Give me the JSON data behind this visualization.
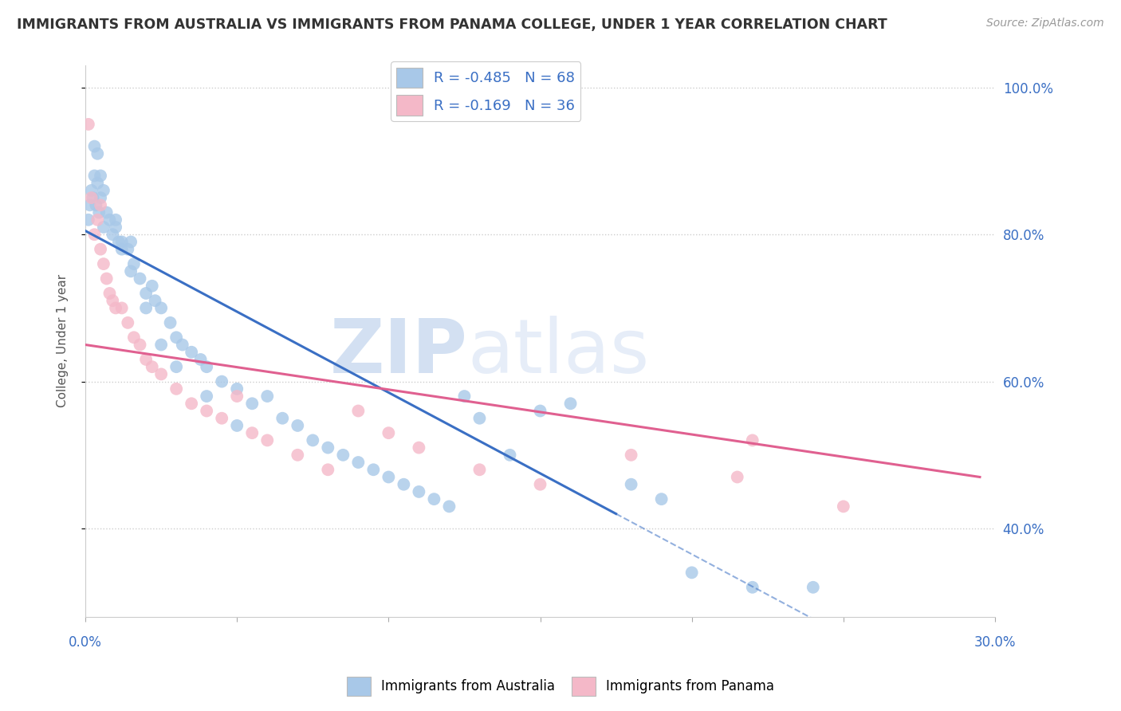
{
  "title": "IMMIGRANTS FROM AUSTRALIA VS IMMIGRANTS FROM PANAMA COLLEGE, UNDER 1 YEAR CORRELATION CHART",
  "source": "Source: ZipAtlas.com",
  "legend_label1": "Immigrants from Australia",
  "legend_label2": "Immigrants from Panama",
  "R1": "-0.485",
  "N1": "68",
  "R2": "-0.169",
  "N2": "36",
  "color_australia": "#a8c8e8",
  "color_panama": "#f4b8c8",
  "line_color_australia": "#3a6fc4",
  "line_color_panama": "#e06090",
  "background_color": "#ffffff",
  "grid_color": "#c8c8c8",
  "aus_line_x0": 0.0,
  "aus_line_y0": 80.5,
  "aus_line_x1": 17.5,
  "aus_line_y1": 42.0,
  "pan_line_x0": 0.0,
  "pan_line_y0": 65.0,
  "pan_line_x1": 29.5,
  "pan_line_y1": 47.0,
  "australia_x": [
    0.1,
    0.15,
    0.2,
    0.25,
    0.3,
    0.35,
    0.4,
    0.45,
    0.5,
    0.6,
    0.7,
    0.8,
    0.9,
    1.0,
    1.1,
    1.2,
    1.4,
    1.5,
    1.6,
    1.8,
    2.0,
    2.2,
    2.3,
    2.5,
    2.8,
    3.0,
    3.2,
    3.5,
    3.8,
    4.0,
    4.5,
    5.0,
    5.5,
    6.0,
    6.5,
    7.0,
    7.5,
    8.0,
    8.5,
    9.0,
    9.5,
    10.0,
    10.5,
    11.0,
    11.5,
    12.0,
    12.5,
    13.0,
    14.0,
    15.0,
    16.0,
    18.0,
    19.0,
    20.0,
    22.0,
    24.0,
    0.3,
    0.4,
    0.5,
    0.6,
    1.0,
    1.2,
    1.5,
    2.0,
    2.5,
    3.0,
    4.0,
    5.0
  ],
  "australia_y": [
    82,
    84,
    86,
    85,
    88,
    84,
    87,
    83,
    85,
    81,
    83,
    82,
    80,
    81,
    79,
    78,
    78,
    79,
    76,
    74,
    72,
    73,
    71,
    70,
    68,
    66,
    65,
    64,
    63,
    62,
    60,
    59,
    57,
    58,
    55,
    54,
    52,
    51,
    50,
    49,
    48,
    47,
    46,
    45,
    44,
    43,
    58,
    55,
    50,
    56,
    57,
    46,
    44,
    34,
    32,
    32,
    92,
    91,
    88,
    86,
    82,
    79,
    75,
    70,
    65,
    62,
    58,
    54
  ],
  "panama_x": [
    0.1,
    0.2,
    0.3,
    0.4,
    0.5,
    0.6,
    0.7,
    0.8,
    0.9,
    1.0,
    1.2,
    1.4,
    1.6,
    1.8,
    2.0,
    2.2,
    2.5,
    3.0,
    3.5,
    4.0,
    4.5,
    5.0,
    5.5,
    6.0,
    7.0,
    8.0,
    9.0,
    10.0,
    11.0,
    13.0,
    15.0,
    18.0,
    21.5,
    22.0,
    25.0,
    0.5
  ],
  "panama_y": [
    95,
    85,
    80,
    82,
    78,
    76,
    74,
    72,
    71,
    70,
    70,
    68,
    66,
    65,
    63,
    62,
    61,
    59,
    57,
    56,
    55,
    58,
    53,
    52,
    50,
    48,
    56,
    53,
    51,
    48,
    46,
    50,
    47,
    52,
    43,
    84
  ],
  "xlim_min": 0,
  "xlim_max": 30,
  "ylim_min": 28,
  "ylim_max": 103,
  "yticks": [
    40,
    60,
    80,
    100
  ],
  "ytick_labels": [
    "40.0%",
    "60.0%",
    "80.0%",
    "100.0%"
  ],
  "xtick_positions": [
    0,
    5,
    10,
    15,
    20,
    25,
    30
  ],
  "watermark_zip": "ZIP",
  "watermark_atlas": "atlas"
}
